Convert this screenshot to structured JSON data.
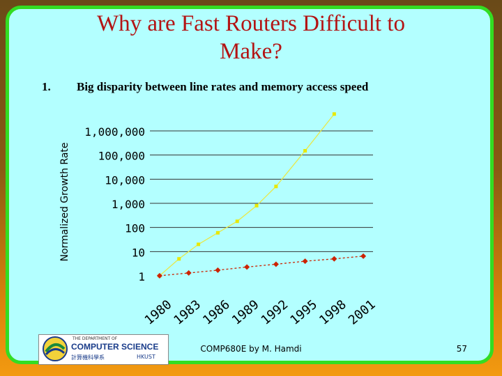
{
  "slide": {
    "title_line1": "Why are Fast Routers Difficult to",
    "title_line2": "Make?",
    "bullet_number": "1.",
    "bullet_text": "Big disparity between line rates and memory access speed",
    "footer_credit": "COMP680E by M. Hamdi",
    "page_number": "57",
    "logo": {
      "line1": "THE DEPARTMENT OF",
      "line2": "COMPUTER SCIENCE",
      "line3": "計算機科學系",
      "line4": "HKUST"
    }
  },
  "colors": {
    "title": "#b31414",
    "background": "#b3ffff",
    "border": "#33dd22",
    "line_series": "#e8e84a",
    "line_markers": "#e8e800",
    "memory_series": "#cc2200"
  },
  "chart_data": {
    "type": "line",
    "ylabel": "Normalized Growth Rate",
    "y_scale": "log",
    "ylim": [
      1,
      1000000
    ],
    "y_ticks": [
      "1",
      "10",
      "100",
      "1,000",
      "10,000",
      "100,000",
      "1,000,000"
    ],
    "x_ticks": [
      "1980",
      "1983",
      "1986",
      "1989",
      "1992",
      "1995",
      "1998",
      "2001"
    ],
    "grid": "horizontal",
    "series": [
      {
        "x": [
          1980,
          1982,
          1984,
          1986,
          1988,
          1990,
          1992,
          1995,
          1998
        ],
        "values": [
          1,
          5,
          20,
          60,
          180,
          800,
          5000,
          150000,
          5000000
        ]
      },
      {
        "x": [
          1980,
          1983,
          1986,
          1989,
          1992,
          1995,
          1998,
          2001
        ],
        "values": [
          1,
          1.3,
          1.7,
          2.3,
          3,
          4,
          5,
          6.5
        ]
      }
    ]
  }
}
